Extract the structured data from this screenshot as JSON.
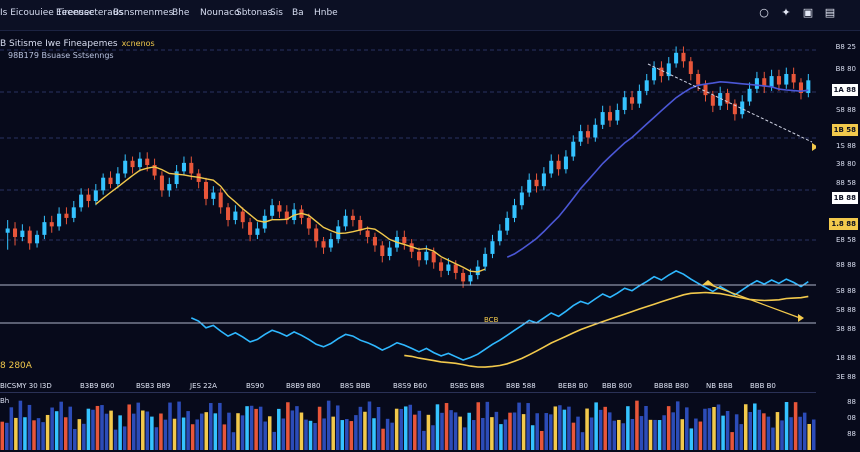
{
  "menu": [
    "Is Eicouuiee Tirensecteraus",
    "Eeeeuse",
    "Bsnsmenmes",
    "Bhe",
    "Nounaco",
    "Sbtonas",
    "Sis",
    "Ba",
    "Hnbe"
  ],
  "top_icons": [
    "search-icon",
    "settings-icon",
    "layout-icon",
    "save-icon"
  ],
  "chart_header": {
    "title": "B Sitisme Iwe Fineapemes",
    "highlight": "xcnenos",
    "subtitle": "98B179 Bsuase Sstsenngs"
  },
  "y_axis_labels": [
    {
      "text": "B8 25"
    },
    {
      "text": "B8 80"
    },
    {
      "text": "1A 88",
      "highlight": "white"
    },
    {
      "text": "S8 88"
    },
    {
      "text": "1S 88"
    },
    {
      "text": "38 80"
    },
    {
      "text": "88 58"
    },
    {
      "text": "1.8 88",
      "highlight": "white"
    },
    {
      "text": "E8 58"
    },
    {
      "text": "88 88"
    },
    {
      "text": "S8 88"
    },
    {
      "text": "S8 88"
    },
    {
      "text": "38 88"
    },
    {
      "text": "18 88"
    },
    {
      "text": "3E 88"
    }
  ],
  "y_axis_markers": {
    "white": "1B 88",
    "yellow": "1B 58"
  },
  "x_axis_labels": [
    "BICSMY 30 I3D",
    "B3B9 B60",
    "BSB3 B89",
    "JES 22A",
    "BS90",
    "B8B9 B80",
    "B8S BBB",
    "B8S9 B60",
    "BSBS B88",
    "B8B 588",
    "BEB8 B0",
    "BBB 800",
    "BB8B B80",
    "NB BBB",
    "BBB B0"
  ],
  "indicator_pane": {
    "label": "8 280A",
    "annotation": "BCB"
  },
  "volume_pane": {
    "label": "Bh",
    "axis_labels": [
      "88",
      "08",
      "88"
    ]
  },
  "colors": {
    "background": "#070a1b",
    "candle_up": "#35c3ff",
    "candle_down": "#e8563a",
    "ma_gold": "#f2c94c",
    "ma_blue": "#4b57d6",
    "oscillator_cyan": "#2fb8ff",
    "oscillator_gold": "#f2c94c"
  },
  "chart_data": {
    "type": "candlestick",
    "candles": [
      [
        78,
        80,
        70,
        84
      ],
      [
        80,
        76,
        72,
        83
      ],
      [
        76,
        79,
        74,
        82
      ],
      [
        79,
        73,
        70,
        81
      ],
      [
        73,
        77,
        71,
        79
      ],
      [
        77,
        83,
        75,
        86
      ],
      [
        83,
        81,
        78,
        86
      ],
      [
        81,
        87,
        79,
        90
      ],
      [
        87,
        85,
        82,
        90
      ],
      [
        85,
        90,
        83,
        93
      ],
      [
        90,
        96,
        88,
        99
      ],
      [
        96,
        93,
        90,
        99
      ],
      [
        93,
        98,
        91,
        101
      ],
      [
        98,
        104,
        96,
        106
      ],
      [
        104,
        101,
        99,
        107
      ],
      [
        101,
        106,
        99,
        109
      ],
      [
        106,
        112,
        104,
        115
      ],
      [
        112,
        109,
        106,
        114
      ],
      [
        109,
        113,
        107,
        116
      ],
      [
        113,
        110,
        107,
        116
      ],
      [
        110,
        105,
        103,
        113
      ],
      [
        105,
        98,
        95,
        107
      ],
      [
        98,
        101,
        95,
        104
      ],
      [
        101,
        107,
        99,
        110
      ],
      [
        107,
        111,
        105,
        114
      ],
      [
        111,
        106,
        103,
        114
      ],
      [
        106,
        102,
        99,
        108
      ],
      [
        102,
        94,
        91,
        104
      ],
      [
        94,
        97,
        91,
        100
      ],
      [
        97,
        90,
        87,
        99
      ],
      [
        90,
        84,
        81,
        92
      ],
      [
        84,
        88,
        82,
        91
      ],
      [
        88,
        83,
        80,
        90
      ],
      [
        83,
        77,
        74,
        85
      ],
      [
        77,
        80,
        75,
        83
      ],
      [
        80,
        86,
        78,
        89
      ],
      [
        86,
        91,
        84,
        94
      ],
      [
        91,
        88,
        85,
        93
      ],
      [
        88,
        84,
        82,
        91
      ],
      [
        84,
        89,
        82,
        92
      ],
      [
        89,
        85,
        82,
        91
      ],
      [
        85,
        80,
        77,
        87
      ],
      [
        80,
        74,
        71,
        82
      ],
      [
        74,
        71,
        68,
        76
      ],
      [
        71,
        75,
        69,
        78
      ],
      [
        75,
        81,
        73,
        84
      ],
      [
        81,
        86,
        79,
        89
      ],
      [
        86,
        84,
        81,
        89
      ],
      [
        84,
        79,
        77,
        86
      ],
      [
        79,
        76,
        73,
        81
      ],
      [
        76,
        72,
        69,
        78
      ],
      [
        72,
        67,
        64,
        74
      ],
      [
        67,
        71,
        65,
        74
      ],
      [
        71,
        76,
        69,
        79
      ],
      [
        76,
        73,
        70,
        79
      ],
      [
        73,
        69,
        66,
        75
      ],
      [
        69,
        65,
        62,
        71
      ],
      [
        65,
        69,
        63,
        72
      ],
      [
        69,
        64,
        61,
        71
      ],
      [
        64,
        60,
        57,
        66
      ],
      [
        60,
        63,
        58,
        66
      ],
      [
        63,
        59,
        56,
        65
      ],
      [
        59,
        55,
        52,
        61
      ],
      [
        55,
        58,
        53,
        61
      ],
      [
        58,
        62,
        56,
        65
      ],
      [
        62,
        68,
        60,
        71
      ],
      [
        68,
        74,
        66,
        77
      ],
      [
        74,
        79,
        72,
        82
      ],
      [
        79,
        85,
        77,
        88
      ],
      [
        85,
        91,
        83,
        94
      ],
      [
        91,
        97,
        89,
        100
      ],
      [
        97,
        103,
        95,
        106
      ],
      [
        103,
        100,
        97,
        106
      ],
      [
        100,
        106,
        98,
        109
      ],
      [
        106,
        112,
        104,
        115
      ],
      [
        112,
        108,
        105,
        115
      ],
      [
        108,
        114,
        106,
        117
      ],
      [
        114,
        121,
        112,
        124
      ],
      [
        121,
        126,
        119,
        129
      ],
      [
        126,
        123,
        120,
        129
      ],
      [
        123,
        129,
        121,
        132
      ],
      [
        129,
        135,
        127,
        138
      ],
      [
        135,
        131,
        128,
        138
      ],
      [
        131,
        136,
        129,
        139
      ],
      [
        136,
        142,
        134,
        145
      ],
      [
        142,
        139,
        136,
        145
      ],
      [
        139,
        145,
        137,
        148
      ],
      [
        145,
        150,
        143,
        153
      ],
      [
        150,
        156,
        148,
        159
      ],
      [
        156,
        152,
        149,
        159
      ],
      [
        152,
        158,
        150,
        161
      ],
      [
        158,
        163,
        156,
        166
      ],
      [
        163,
        159,
        156,
        166
      ],
      [
        159,
        153,
        150,
        161
      ],
      [
        153,
        148,
        145,
        155
      ],
      [
        148,
        143,
        140,
        150
      ],
      [
        143,
        138,
        135,
        145
      ],
      [
        138,
        144,
        136,
        147
      ],
      [
        144,
        139,
        136,
        146
      ],
      [
        139,
        134,
        131,
        141
      ],
      [
        134,
        140,
        132,
        143
      ],
      [
        140,
        146,
        138,
        149
      ],
      [
        146,
        151,
        144,
        154
      ],
      [
        151,
        147,
        144,
        154
      ],
      [
        147,
        152,
        145,
        155
      ],
      [
        152,
        148,
        145,
        155
      ],
      [
        148,
        153,
        146,
        156
      ],
      [
        153,
        149,
        146,
        156
      ],
      [
        149,
        144,
        141,
        151
      ],
      [
        144,
        150,
        142,
        153
      ]
    ]
  }
}
